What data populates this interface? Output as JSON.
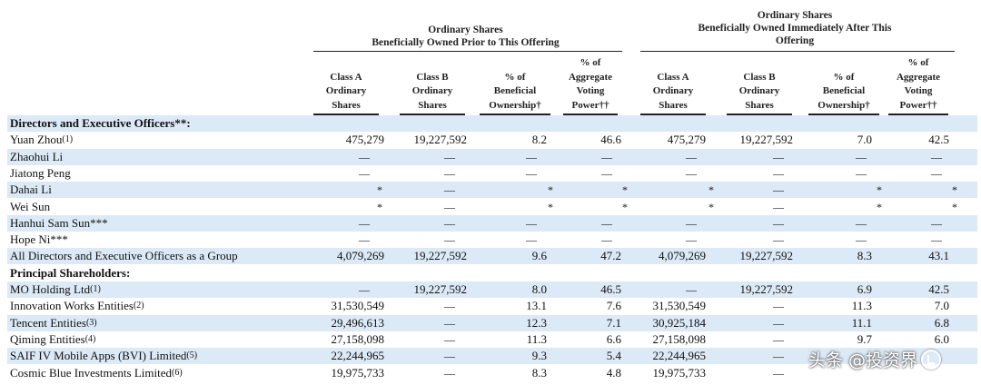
{
  "groups": [
    {
      "lines": [
        "Ordinary Shares",
        "Beneficially Owned Prior to This Offering"
      ]
    },
    {
      "lines": [
        "Ordinary Shares",
        "Beneficially Owned Immediately After This",
        "Offering"
      ]
    }
  ],
  "columns": [
    [
      "Class A",
      "Ordinary",
      "Shares"
    ],
    [
      "Class B",
      "Ordinary",
      "Shares"
    ],
    [
      "% of",
      "Beneficial",
      "Ownership†"
    ],
    [
      "% of",
      "Aggregate",
      "Voting",
      "Power††"
    ],
    [
      "Class A",
      "Ordinary",
      "Shares"
    ],
    [
      "Class B",
      "Ordinary",
      "Shares"
    ],
    [
      "% of",
      "Beneficial",
      "Ownership†"
    ],
    [
      "% of",
      "Aggregate",
      "Voting",
      "Power††"
    ]
  ],
  "rows": [
    {
      "label": "Directors and Executive Officers**:",
      "section": true
    },
    {
      "label": "Yuan Zhou",
      "note": "(1)",
      "values": [
        "475,279",
        "19,227,592",
        "8.2",
        "46.6",
        "475,279",
        "19,227,592",
        "7.0",
        "42.5"
      ]
    },
    {
      "label": "Zhaohui Li",
      "values": [
        "—",
        "—",
        "—",
        "—",
        "—",
        "—",
        "—",
        "—"
      ]
    },
    {
      "label": "Jiatong Peng",
      "values": [
        "—",
        "—",
        "—",
        "—",
        "—",
        "—",
        "—",
        "—"
      ]
    },
    {
      "label": "Dahai Li",
      "values": [
        "*",
        "—",
        "*",
        "*",
        "*",
        "—",
        "*",
        "*"
      ]
    },
    {
      "label": "Wei Sun",
      "values": [
        "*",
        "—",
        "*",
        "*",
        "*",
        "—",
        "*",
        "*"
      ]
    },
    {
      "label": "Hanhui Sam Sun***",
      "values": [
        "—",
        "—",
        "—",
        "—",
        "—",
        "—",
        "—",
        "—"
      ]
    },
    {
      "label": "Hope Ni***",
      "values": [
        "—",
        "—",
        "—",
        "—",
        "—",
        "—",
        "—",
        "—"
      ]
    },
    {
      "label": "All Directors and Executive Officers as a Group",
      "values": [
        "4,079,269",
        "19,227,592",
        "9.6",
        "47.2",
        "4,079,269",
        "19,227,592",
        "8.3",
        "43.1"
      ]
    },
    {
      "label": "Principal Shareholders:",
      "section": true
    },
    {
      "label": "MO Holding Ltd",
      "note": "(1)",
      "values": [
        "—",
        "19,227,592",
        "8.0",
        "46.5",
        "—",
        "19,227,592",
        "6.9",
        "42.5"
      ]
    },
    {
      "label": "Innovation Works Entities",
      "note": "(2)",
      "values": [
        "31,530,549",
        "—",
        "13.1",
        "7.6",
        "31,530,549",
        "—",
        "11.3",
        "7.0"
      ]
    },
    {
      "label": "Tencent Entities",
      "note": "(3)",
      "values": [
        "29,496,613",
        "—",
        "12.3",
        "7.1",
        "30,925,184",
        "—",
        "11.1",
        "6.8"
      ]
    },
    {
      "label": "Qiming Entities",
      "note": "(4)",
      "values": [
        "27,158,098",
        "—",
        "11.3",
        "6.6",
        "27,158,098",
        "—",
        "9.7",
        "6.0"
      ]
    },
    {
      "label": "SAIF IV Mobile Apps (BVI) Limited",
      "note": "(5)",
      "values": [
        "22,244,965",
        "—",
        "9.3",
        "5.4",
        "22,244,965",
        "—",
        "",
        ""
      ]
    },
    {
      "label": "Cosmic Blue Investments Limited",
      "note": "(6)",
      "values": [
        "19,975,733",
        "—",
        "8.3",
        "4.8",
        "19,975,733",
        "—",
        "",
        ""
      ]
    }
  ],
  "watermark": {
    "text": "头条 @投资界",
    "icon": "watermark-logo-icon"
  }
}
